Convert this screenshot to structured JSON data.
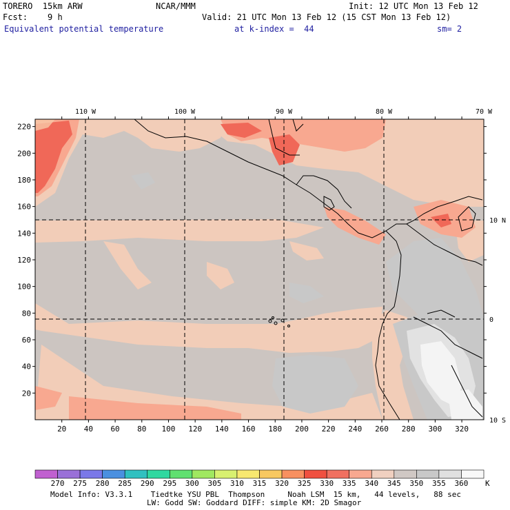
{
  "header": {
    "model": "TORERO  15km ARW",
    "org": "NCAR/MMM",
    "init": "Init: 12 UTC Mon 13 Feb 12",
    "fcst": "Fcst:    9 h",
    "valid": "Valid: 21 UTC Mon 13 Feb 12 (15 CST Mon 13 Feb 12)",
    "field": "Equivalent potential temperature",
    "level": "at k-index =  44",
    "smooth": "sm= 2"
  },
  "map": {
    "lon_labels": [
      "110 W",
      "100 W",
      "90 W",
      "80 W",
      "70 W"
    ],
    "lat_labels": [
      "10 N",
      "0",
      "10 S"
    ],
    "y_ticks": [
      "20",
      "40",
      "60",
      "80",
      "100",
      "120",
      "140",
      "160",
      "180",
      "200",
      "220"
    ],
    "x_ticks": [
      "20",
      "40",
      "60",
      "80",
      "100",
      "120",
      "140",
      "160",
      "180",
      "200",
      "220",
      "240",
      "260",
      "280",
      "300",
      "320"
    ],
    "background_color": "#ccc5c1"
  },
  "colorbar": {
    "levels": [
      "270",
      "275",
      "280",
      "285",
      "290",
      "295",
      "300",
      "305",
      "310",
      "315",
      "320",
      "325",
      "330",
      "335",
      "340",
      "345",
      "350",
      "355",
      "360"
    ],
    "unit": "K",
    "colors": [
      "#c060d0",
      "#9a70d8",
      "#7a78e8",
      "#4a90e0",
      "#30c0c0",
      "#30d8a0",
      "#60e070",
      "#a0e860",
      "#d8f070",
      "#f8e870",
      "#f8c860",
      "#f89060",
      "#f05040",
      "#f07060",
      "#f8a890",
      "#f0d0c0",
      "#d0c8c4",
      "#c8c8c8",
      "#e0e0e0",
      "#f8f8f8"
    ]
  },
  "footer": {
    "line1": "Model Info: V3.3.1    Tiedtke YSU PBL  Thompson     Noah LSM  15 km,   44 levels,   88 sec",
    "line2": "LW: Godd SW: Goddard DIFF: simple KM: 2D Smagor"
  }
}
